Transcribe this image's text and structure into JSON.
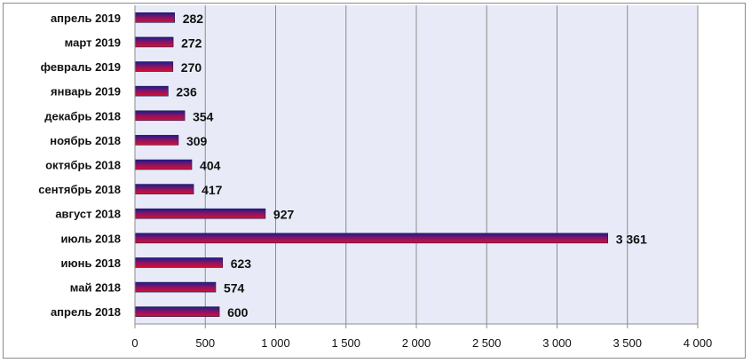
{
  "chart_data": {
    "type": "bar",
    "orientation": "horizontal",
    "categories": [
      "апрель 2019",
      "март 2019",
      "февраль 2019",
      "январь 2019",
      "декабрь 2018",
      "ноябрь 2018",
      "октябрь 2018",
      "сентябрь 2018",
      "август 2018",
      "июль 2018",
      "июнь 2018",
      "май 2018",
      "апрель 2018"
    ],
    "values": [
      282,
      272,
      270,
      236,
      354,
      309,
      404,
      417,
      927,
      3361,
      623,
      574,
      600
    ],
    "value_labels": [
      "282",
      "272",
      "270",
      "236",
      "354",
      "309",
      "404",
      "417",
      "927",
      "3 361",
      "623",
      "574",
      "600"
    ],
    "xlim": [
      0,
      4000
    ],
    "x_ticks": [
      0,
      500,
      1000,
      1500,
      2000,
      2500,
      3000,
      3500,
      4000
    ],
    "x_tick_labels": [
      "0",
      "500",
      "1 000",
      "1 500",
      "2 000",
      "2 500",
      "3 000",
      "3 500",
      "4 000"
    ],
    "grid": "vertical",
    "legend": "none",
    "colors": {
      "plot_background": "#e8ebf7",
      "bar_top": "#1f1a8c",
      "bar_bottom": "#d8102e",
      "grid": "#8c8c8c"
    }
  }
}
